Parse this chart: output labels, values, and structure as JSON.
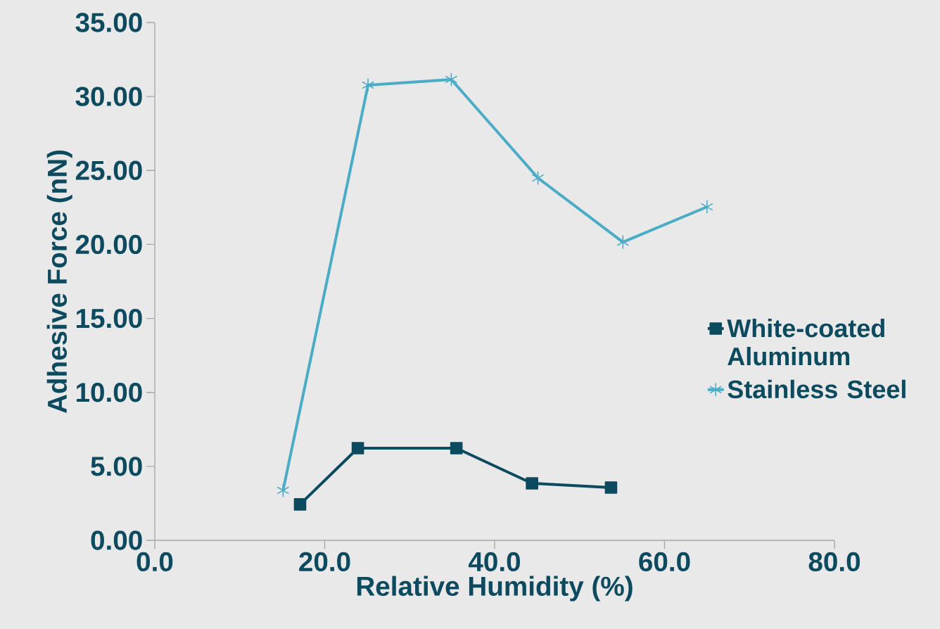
{
  "chart_data": {
    "type": "line",
    "xlabel": "Relative Humidity (%)",
    "ylabel": "Adhesive Force (nN)",
    "series": [
      {
        "name": "White-coated Aluminum",
        "color": "#0c4a5f",
        "marker": "square",
        "x": [
          17.1,
          23.9,
          35.5,
          44.4,
          53.7
        ],
        "values": [
          2.43,
          6.23,
          6.23,
          3.85,
          3.57
        ]
      },
      {
        "name": "Stainless Steel",
        "color": "#4bacc6",
        "marker": "cross",
        "x": [
          15.1,
          25.1,
          34.9,
          45.1,
          55.1,
          65.0
        ],
        "values": [
          3.38,
          30.77,
          31.15,
          24.49,
          20.16,
          22.54
        ]
      }
    ],
    "xlim": [
      0,
      80
    ],
    "ylim": [
      0,
      35
    ],
    "xticks": [
      {
        "value": 0,
        "label": "0.0"
      },
      {
        "value": 20,
        "label": "20.0"
      },
      {
        "value": 40,
        "label": "40.0"
      },
      {
        "value": 60,
        "label": "60.0"
      },
      {
        "value": 80,
        "label": "80.0"
      }
    ],
    "yticks": [
      {
        "value": 0,
        "label": "0.00"
      },
      {
        "value": 5,
        "label": "5.00"
      },
      {
        "value": 10,
        "label": "10.00"
      },
      {
        "value": 15,
        "label": "15.00"
      },
      {
        "value": 20,
        "label": "20.00"
      },
      {
        "value": 25,
        "label": "25.00"
      },
      {
        "value": 30,
        "label": "30.00"
      },
      {
        "value": 35,
        "label": "35.00"
      }
    ],
    "grid": false,
    "legend": "right",
    "line_style": "solid"
  }
}
